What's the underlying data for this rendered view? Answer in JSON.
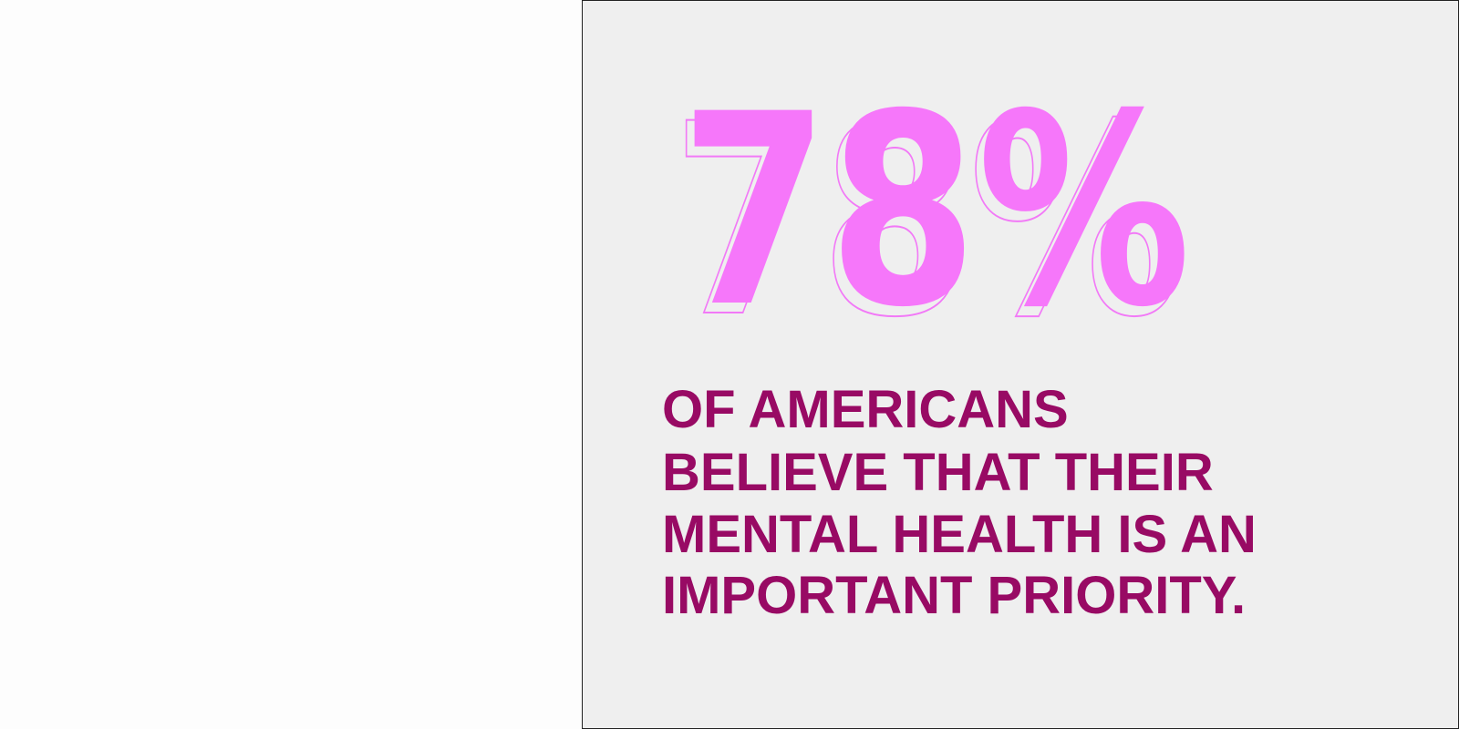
{
  "stat": {
    "figure": "78%",
    "description": [
      "OF AMERICANS",
      "BELIEVE THAT THEIR",
      "MENTAL HEALTH IS AN",
      "IMPORTANT PRIORITY."
    ]
  }
}
